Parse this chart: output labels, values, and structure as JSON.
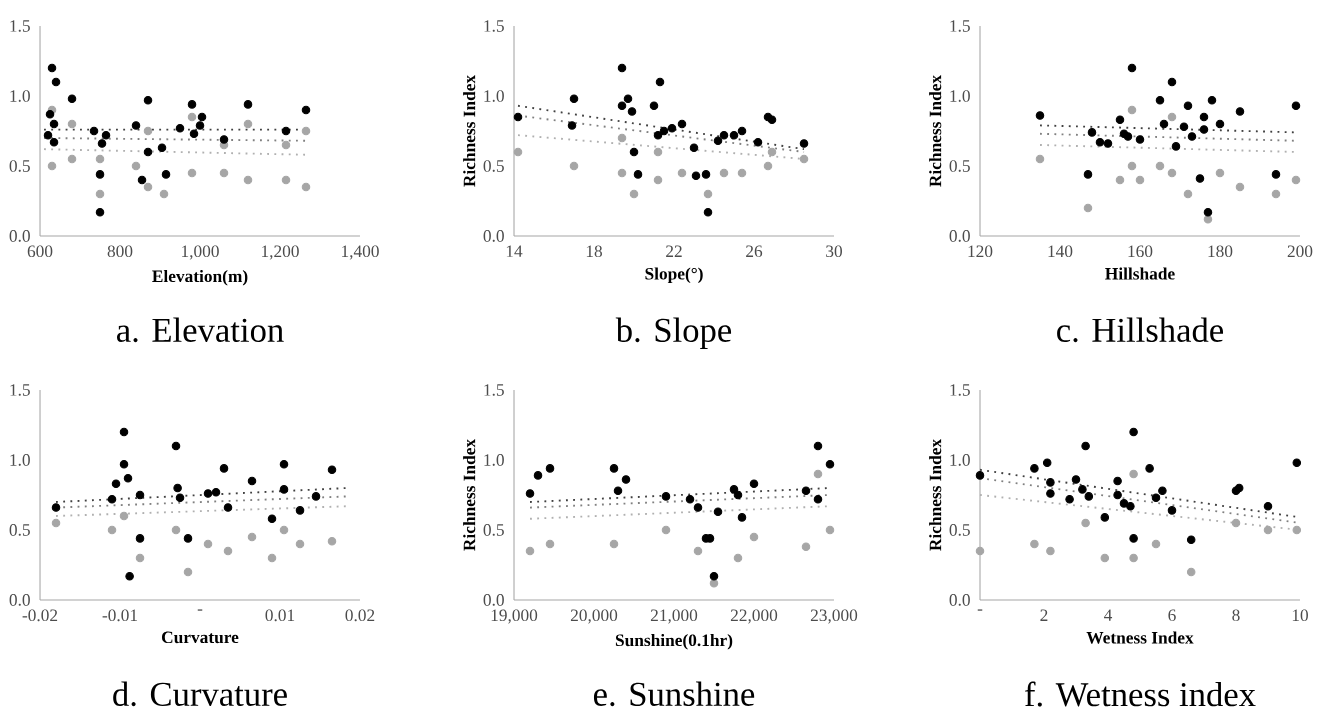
{
  "chart_data": [
    {
      "type": "scatter",
      "title": "a.  Elevation",
      "xlabel": "Elevation(m)",
      "xlim": [
        600,
        1400
      ],
      "ylim": [
        0,
        1.5
      ],
      "xticks": [
        {
          "value": 600,
          "label": "600"
        },
        {
          "value": 800,
          "label": "800"
        },
        {
          "value": 1000,
          "label": "1,000"
        },
        {
          "value": 1200,
          "label": "1,200"
        },
        {
          "value": 1400,
          "label": "1,400"
        }
      ],
      "yticks": [
        {
          "value": 0,
          "label": "0.0"
        },
        {
          "value": 0.5,
          "label": "0.5"
        },
        {
          "value": 1,
          "label": "1.0"
        },
        {
          "value": 1.5,
          "label": "1.5"
        }
      ],
      "marker": "circle",
      "series": [
        {
          "color": "#a6a6a6",
          "x": [
            630,
            630,
            680,
            680,
            750,
            750,
            870,
            870,
            980,
            980,
            1060,
            1060,
            1120,
            1120,
            1215,
            1215,
            1265,
            1265,
            840,
            910
          ],
          "values": [
            0.5,
            0.9,
            0.55,
            0.8,
            0.3,
            0.55,
            0.35,
            0.75,
            0.45,
            0.85,
            0.45,
            0.65,
            0.4,
            0.8,
            0.4,
            0.65,
            0.35,
            0.75,
            0.5,
            0.3
          ]
        },
        {
          "type": "line",
          "color": "#404040",
          "line_style": "dotted",
          "marker": "none",
          "x": [
            610,
            1270
          ],
          "values": [
            0.76,
            0.76
          ]
        },
        {
          "type": "line",
          "color": "#808080",
          "line_style": "dotted",
          "marker": "none",
          "x": [
            610,
            1270
          ],
          "values": [
            0.7,
            0.68
          ]
        },
        {
          "type": "line",
          "color": "#b0b0b0",
          "line_style": "dotted",
          "marker": "none",
          "x": [
            610,
            1270
          ],
          "values": [
            0.62,
            0.58
          ]
        },
        {
          "color": "#000000",
          "x": [
            620,
            625,
            630,
            635,
            640,
            635,
            680,
            735,
            750,
            750,
            755,
            765,
            840,
            855,
            870,
            870,
            905,
            915,
            950,
            980,
            985,
            1000,
            1005,
            1060,
            1120,
            1215,
            1265
          ],
          "values": [
            0.72,
            0.87,
            1.2,
            0.8,
            1.1,
            0.67,
            0.98,
            0.75,
            0.17,
            0.44,
            0.66,
            0.72,
            0.79,
            0.4,
            0.97,
            0.6,
            0.63,
            0.44,
            0.77,
            0.94,
            0.73,
            0.79,
            0.85,
            0.69,
            0.94,
            0.75,
            0.9
          ]
        }
      ]
    },
    {
      "type": "scatter",
      "title": "b.  Slope",
      "xlabel": "Slope(°)",
      "ylabel": "Richness Index",
      "xlim": [
        14,
        30
      ],
      "ylim": [
        0,
        1.5
      ],
      "xticks": [
        14,
        18,
        22,
        26,
        30
      ],
      "yticks": [
        {
          "value": 0,
          "label": "0.0"
        },
        {
          "value": 0.5,
          "label": "0.5"
        },
        {
          "value": 1,
          "label": "1.0"
        },
        {
          "value": 1.5,
          "label": "1.5"
        }
      ],
      "marker": "circle",
      "series": [
        {
          "color": "#a6a6a6",
          "x": [
            14.2,
            17,
            19.4,
            20,
            21.2,
            22.4,
            23.7,
            24.5,
            25.4,
            26.7,
            28.5,
            19.4,
            21.2,
            26.9
          ],
          "values": [
            0.6,
            0.5,
            0.45,
            0.3,
            0.4,
            0.45,
            0.3,
            0.45,
            0.45,
            0.5,
            0.55,
            0.7,
            0.6,
            0.6
          ]
        },
        {
          "type": "line",
          "color": "#404040",
          "line_style": "dotted",
          "marker": "none",
          "x": [
            14.2,
            28.5
          ],
          "values": [
            0.93,
            0.62
          ]
        },
        {
          "type": "line",
          "color": "#808080",
          "line_style": "dotted",
          "marker": "none",
          "x": [
            14.2,
            28.5
          ],
          "values": [
            0.86,
            0.6
          ]
        },
        {
          "type": "line",
          "color": "#b0b0b0",
          "line_style": "dotted",
          "marker": "none",
          "x": [
            14.2,
            28.5
          ],
          "values": [
            0.72,
            0.55
          ]
        },
        {
          "color": "#000000",
          "x": [
            14.2,
            16.9,
            17,
            19.4,
            19.4,
            19.7,
            19.9,
            20,
            20.2,
            21,
            21.2,
            21.3,
            21.5,
            21.9,
            22.4,
            23,
            23.1,
            23.6,
            23.7,
            24.2,
            24.5,
            25,
            25.4,
            26.2,
            26.7,
            26.9,
            28.5
          ],
          "values": [
            0.85,
            0.79,
            0.98,
            1.2,
            0.93,
            0.98,
            0.89,
            0.6,
            0.44,
            0.93,
            0.72,
            1.1,
            0.75,
            0.77,
            0.8,
            0.63,
            0.43,
            0.44,
            0.17,
            0.68,
            0.72,
            0.72,
            0.75,
            0.67,
            0.85,
            0.83,
            0.66
          ]
        }
      ]
    },
    {
      "type": "scatter",
      "title": "c.  Hillshade",
      "xlabel": "Hillshade",
      "ylabel": "Richness Index",
      "xlim": [
        120,
        200
      ],
      "ylim": [
        0,
        1.5
      ],
      "xticks": [
        120,
        140,
        160,
        180,
        200
      ],
      "yticks": [
        {
          "value": 0,
          "label": "0.0"
        },
        {
          "value": 0.5,
          "label": "0.5"
        },
        {
          "value": 1,
          "label": "1.0"
        },
        {
          "value": 1.5,
          "label": "1.5"
        }
      ],
      "marker": "circle",
      "series": [
        {
          "color": "#a6a6a6",
          "x": [
            135,
            147,
            155,
            158,
            160,
            165,
            168,
            172,
            177,
            180,
            185,
            194,
            199,
            158,
            168
          ],
          "values": [
            0.55,
            0.2,
            0.4,
            0.5,
            0.4,
            0.5,
            0.45,
            0.3,
            0.12,
            0.45,
            0.35,
            0.3,
            0.4,
            0.9,
            0.85
          ]
        },
        {
          "type": "line",
          "color": "#404040",
          "line_style": "dotted",
          "marker": "none",
          "x": [
            135,
            199
          ],
          "values": [
            0.79,
            0.74
          ]
        },
        {
          "type": "line",
          "color": "#808080",
          "line_style": "dotted",
          "marker": "none",
          "x": [
            135,
            199
          ],
          "values": [
            0.73,
            0.68
          ]
        },
        {
          "type": "line",
          "color": "#b0b0b0",
          "line_style": "dotted",
          "marker": "none",
          "x": [
            135,
            199
          ],
          "values": [
            0.65,
            0.6
          ]
        },
        {
          "color": "#000000",
          "x": [
            135,
            147,
            148,
            150,
            152,
            155,
            156,
            157,
            158,
            160,
            165,
            166,
            168,
            169,
            171,
            172,
            173,
            175,
            176,
            176,
            177,
            178,
            180,
            185,
            194,
            199
          ],
          "values": [
            0.86,
            0.44,
            0.74,
            0.67,
            0.66,
            0.83,
            0.73,
            0.71,
            1.2,
            0.69,
            0.97,
            0.8,
            1.1,
            0.64,
            0.78,
            0.93,
            0.71,
            0.41,
            0.85,
            0.76,
            0.17,
            0.97,
            0.8,
            0.89,
            0.44,
            0.93
          ]
        }
      ]
    },
    {
      "type": "scatter",
      "title": "d.  Curvature",
      "xlabel": "Curvature",
      "xlim": [
        -0.02,
        0.02
      ],
      "ylim": [
        0,
        1.5
      ],
      "xticks": [
        -0.02,
        -0.01,
        {
          "value": 0,
          "label": "-"
        },
        0.01,
        0.02
      ],
      "yticks": [
        {
          "value": 0,
          "label": "0.0"
        },
        {
          "value": 0.5,
          "label": "0.5"
        },
        {
          "value": 1,
          "label": "1.0"
        },
        {
          "value": 1.5,
          "label": "1.5"
        }
      ],
      "marker": "circle",
      "series": [
        {
          "color": "#a6a6a6",
          "x": [
            -0.018,
            -0.011,
            -0.0095,
            -0.0075,
            -0.003,
            -0.0015,
            0.001,
            0.0035,
            0.0065,
            0.009,
            0.0105,
            0.0125,
            0.0165
          ],
          "values": [
            0.55,
            0.5,
            0.6,
            0.3,
            0.5,
            0.2,
            0.4,
            0.35,
            0.45,
            0.3,
            0.5,
            0.4,
            0.42
          ]
        },
        {
          "type": "line",
          "color": "#404040",
          "line_style": "dotted",
          "marker": "none",
          "x": [
            -0.018,
            0.0185
          ],
          "values": [
            0.7,
            0.8
          ]
        },
        {
          "type": "line",
          "color": "#808080",
          "line_style": "dotted",
          "marker": "none",
          "x": [
            -0.018,
            0.0185
          ],
          "values": [
            0.66,
            0.74
          ]
        },
        {
          "type": "line",
          "color": "#b0b0b0",
          "line_style": "dotted",
          "marker": "none",
          "x": [
            -0.018,
            0.0185
          ],
          "values": [
            0.6,
            0.67
          ]
        },
        {
          "color": "#000000",
          "x": [
            -0.018,
            -0.011,
            -0.0105,
            -0.0095,
            -0.0095,
            -0.009,
            -0.0088,
            -0.0075,
            -0.0075,
            -0.003,
            -0.0028,
            -0.0025,
            -0.0015,
            0.001,
            0.002,
            0.003,
            0.0035,
            0.0065,
            0.009,
            0.0105,
            0.0105,
            0.0125,
            0.0145,
            0.0165
          ],
          "values": [
            0.66,
            0.72,
            0.83,
            1.2,
            0.97,
            0.87,
            0.17,
            0.75,
            0.44,
            1.1,
            0.8,
            0.73,
            0.44,
            0.76,
            0.77,
            0.94,
            0.66,
            0.85,
            0.58,
            0.97,
            0.79,
            0.64,
            0.74,
            0.93
          ]
        }
      ]
    },
    {
      "type": "scatter",
      "title": "e.  Sunshine",
      "xlabel": "Sunshine(0.1hr)",
      "ylabel": "Richness Index",
      "xlim": [
        19000,
        23000
      ],
      "ylim": [
        0,
        1.5
      ],
      "xticks": [
        {
          "value": 19000,
          "label": "19,000"
        },
        {
          "value": 20000,
          "label": "20,000"
        },
        {
          "value": 21000,
          "label": "21,000"
        },
        {
          "value": 22000,
          "label": "22,000"
        },
        {
          "value": 23000,
          "label": "23,000"
        }
      ],
      "yticks": [
        {
          "value": 0,
          "label": "0.0"
        },
        {
          "value": 0.5,
          "label": "0.5"
        },
        {
          "value": 1,
          "label": "1.0"
        },
        {
          "value": 1.5,
          "label": "1.5"
        }
      ],
      "marker": "circle",
      "series": [
        {
          "color": "#a6a6a6",
          "x": [
            19200,
            19450,
            20250,
            20900,
            21300,
            21500,
            21800,
            22000,
            22650,
            22950,
            22800
          ],
          "values": [
            0.35,
            0.4,
            0.4,
            0.5,
            0.35,
            0.12,
            0.3,
            0.45,
            0.38,
            0.5,
            0.9
          ]
        },
        {
          "type": "line",
          "color": "#404040",
          "line_style": "dotted",
          "marker": "none",
          "x": [
            19200,
            22950
          ],
          "values": [
            0.7,
            0.8
          ]
        },
        {
          "type": "line",
          "color": "#808080",
          "line_style": "dotted",
          "marker": "none",
          "x": [
            19200,
            22950
          ],
          "values": [
            0.66,
            0.75
          ]
        },
        {
          "type": "line",
          "color": "#b0b0b0",
          "line_style": "dotted",
          "marker": "none",
          "x": [
            19200,
            22950
          ],
          "values": [
            0.58,
            0.67
          ]
        },
        {
          "color": "#000000",
          "x": [
            19200,
            19300,
            19450,
            20250,
            20300,
            20400,
            20900,
            21200,
            21300,
            21400,
            21450,
            21500,
            21550,
            21750,
            21800,
            21850,
            22000,
            22650,
            22800,
            22800,
            22950
          ],
          "values": [
            0.76,
            0.89,
            0.94,
            0.94,
            0.78,
            0.86,
            0.74,
            0.72,
            0.66,
            0.44,
            0.44,
            0.17,
            0.63,
            0.79,
            0.75,
            0.59,
            0.83,
            0.78,
            1.1,
            0.72,
            0.97
          ]
        }
      ]
    },
    {
      "type": "scatter",
      "title": "f.  Wetness  index",
      "xlabel": "Wetness Index",
      "ylabel": "Richness Index",
      "xlim": [
        0,
        10
      ],
      "ylim": [
        0,
        1.5
      ],
      "xticks": [
        {
          "value": 0,
          "label": "-"
        },
        2,
        4,
        6,
        8,
        10
      ],
      "yticks": [
        {
          "value": 0,
          "label": "0.0"
        },
        {
          "value": 0.5,
          "label": "0.5"
        },
        {
          "value": 1,
          "label": "1.0"
        },
        {
          "value": 1.5,
          "label": "1.5"
        }
      ],
      "marker": "circle",
      "series": [
        {
          "color": "#a6a6a6",
          "x": [
            0,
            1.7,
            2.2,
            3.3,
            3.9,
            4.8,
            5.5,
            6.6,
            8.0,
            9.0,
            9.9,
            4.8
          ],
          "values": [
            0.35,
            0.4,
            0.35,
            0.55,
            0.3,
            0.3,
            0.4,
            0.2,
            0.55,
            0.5,
            0.5,
            0.9
          ]
        },
        {
          "type": "line",
          "color": "#404040",
          "line_style": "dotted",
          "marker": "none",
          "x": [
            0,
            10
          ],
          "values": [
            0.93,
            0.59
          ]
        },
        {
          "type": "line",
          "color": "#808080",
          "line_style": "dotted",
          "marker": "none",
          "x": [
            0,
            10
          ],
          "values": [
            0.87,
            0.55
          ]
        },
        {
          "type": "line",
          "color": "#b0b0b0",
          "line_style": "dotted",
          "marker": "none",
          "x": [
            0,
            10
          ],
          "values": [
            0.75,
            0.5
          ]
        },
        {
          "color": "#000000",
          "x": [
            0,
            1.7,
            2.1,
            2.2,
            2.2,
            2.8,
            3.0,
            3.2,
            3.3,
            3.4,
            3.9,
            4.3,
            4.3,
            4.5,
            4.7,
            4.8,
            4.8,
            5.3,
            5.5,
            5.7,
            6.0,
            6.6,
            8.0,
            8.1,
            9.0,
            9.9
          ],
          "values": [
            0.89,
            0.94,
            0.98,
            0.84,
            0.76,
            0.72,
            0.86,
            0.79,
            1.1,
            0.74,
            0.59,
            0.85,
            0.75,
            0.69,
            0.67,
            1.2,
            0.44,
            0.94,
            0.73,
            0.78,
            0.64,
            0.43,
            0.78,
            0.8,
            0.67,
            0.98
          ]
        }
      ]
    }
  ]
}
